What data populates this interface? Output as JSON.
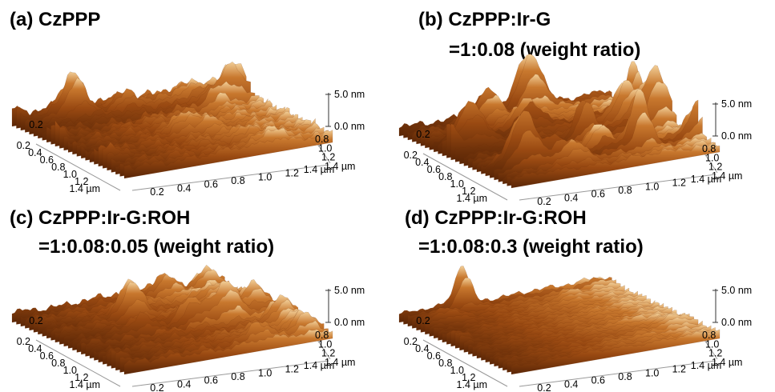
{
  "panels": [
    {
      "title": "(a) CzPPP",
      "z_ticks": [
        "5.0 nm",
        "0.0 nm"
      ],
      "back_tick": "0.2",
      "left_ticks": [
        "0.2",
        "0.4",
        "0.6",
        "0.8",
        "1.0",
        "1.2",
        "1.4 µm"
      ],
      "bottom_ticks": [
        "0.2",
        "0.4",
        "0.6",
        "0.8",
        "1.0",
        "1.2",
        "1.4 µm"
      ],
      "right_ticks": [
        "0.8",
        "1.0",
        "1.2",
        "1.4 µm"
      ]
    },
    {
      "title": "(b) CzPPP:Ir-G",
      "ratio": "=1:0.08 (weight ratio)",
      "z_ticks": [
        "5.0 nm",
        "0.0 nm"
      ],
      "back_tick": "0.2",
      "left_ticks": [
        "0.2",
        "0.4",
        "0.6",
        "0.8",
        "1.0",
        "1.2",
        "1.4 µm"
      ],
      "bottom_ticks": [
        "0.2",
        "0.4",
        "0.6",
        "0.8",
        "1.0",
        "1.2",
        "1.4 µm"
      ],
      "right_ticks": [
        "0.8",
        "1.0",
        "1.2",
        "1.4 µm"
      ]
    },
    {
      "title": "(c) CzPPP:Ir-G:ROH",
      "ratio": "=1:0.08:0.05 (weight ratio)",
      "z_ticks": [
        "5.0 nm",
        "0.0 nm"
      ],
      "back_tick": "0.2",
      "left_ticks": [
        "0.2",
        "0.4",
        "0.6",
        "0.8",
        "1.0",
        "1.2",
        "1.4 µm"
      ],
      "bottom_ticks": [
        "0.2",
        "0.4",
        "0.6",
        "0.8",
        "1.0",
        "1.2",
        "1.4 µm"
      ],
      "right_ticks": [
        "0.8",
        "1.0",
        "1.2",
        "1.4 µm"
      ]
    },
    {
      "title": "(d) CzPPP:Ir-G:ROH",
      "ratio": "=1:0.08:0.3 (weight ratio)",
      "z_ticks": [
        "5.0 nm",
        "0.0 nm"
      ],
      "back_tick": "0.2",
      "left_ticks": [
        "0.2",
        "0.4",
        "0.6",
        "0.8",
        "1.0",
        "1.2",
        "1.4 µm"
      ],
      "bottom_ticks": [
        "0.2",
        "0.4",
        "0.6",
        "0.8",
        "1.0",
        "1.2",
        "1.4 µm"
      ],
      "right_ticks": [
        "0.8",
        "1.0",
        "1.2",
        "1.4 µm"
      ]
    }
  ]
}
